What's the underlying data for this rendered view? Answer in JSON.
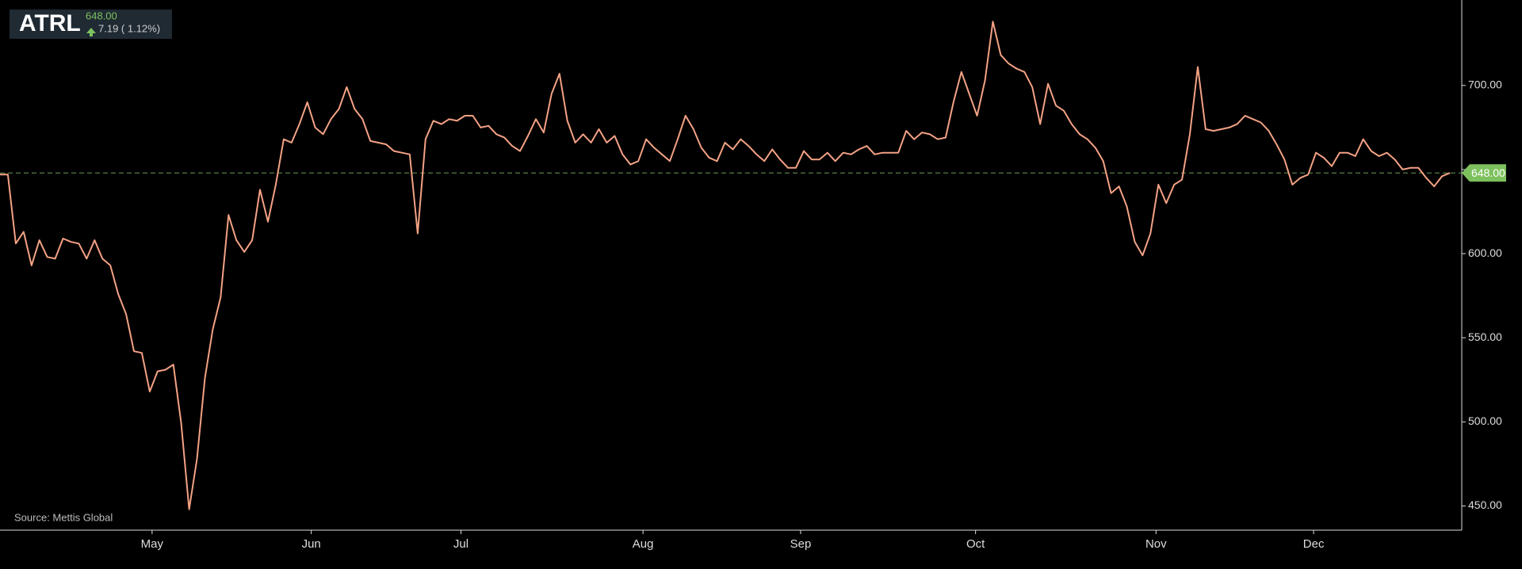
{
  "chart_data": {
    "type": "line",
    "ticker": {
      "symbol": "ATRL",
      "price": "648.00",
      "change": "7.19 ( 1.12%)"
    },
    "source": "Source: Mettis Global",
    "color": "#f4a285",
    "values": [
      647,
      647,
      606,
      613,
      593,
      608,
      598,
      597,
      609,
      607,
      606,
      597,
      608,
      597,
      593,
      576,
      564,
      542,
      541,
      518,
      530,
      531,
      534,
      499,
      448,
      478,
      526,
      555,
      574,
      623,
      608,
      601,
      608,
      638,
      619,
      641,
      668,
      666,
      677,
      690,
      675,
      671,
      680,
      686,
      699,
      686,
      680,
      667,
      666,
      665,
      661,
      660,
      659,
      612,
      668,
      679,
      677,
      680,
      679,
      682,
      682,
      675,
      676,
      671,
      669,
      664,
      661,
      670,
      680,
      672,
      695,
      707,
      679,
      666,
      671,
      666,
      674,
      666,
      670,
      659,
      653,
      655,
      668,
      663,
      659,
      655,
      668,
      682,
      674,
      663,
      657,
      655,
      666,
      662,
      668,
      664,
      659,
      655,
      662,
      656,
      651,
      651,
      661,
      656,
      656,
      660,
      655,
      660,
      659,
      662,
      664,
      659,
      660,
      660,
      660,
      673,
      668,
      672,
      671,
      668,
      669,
      690,
      708,
      695,
      682,
      703,
      738,
      718,
      713,
      710,
      708,
      699,
      677,
      701,
      688,
      685,
      677,
      671,
      668,
      663,
      655,
      636,
      640,
      628,
      607,
      599,
      612,
      641,
      630,
      641,
      644,
      671,
      711,
      674,
      673,
      674,
      675,
      677,
      682,
      680,
      678,
      673,
      665,
      656,
      641,
      645,
      647,
      660,
      657,
      652,
      660,
      660,
      658,
      668,
      661,
      658,
      660,
      656,
      650,
      651,
      651,
      645,
      640,
      646,
      648
    ],
    "xlim": [
      0,
      185.5
    ],
    "xticks": [
      {
        "value": 19.3,
        "label": "May"
      },
      {
        "value": 39.5,
        "label": "Jun"
      },
      {
        "value": 58.5,
        "label": "Jul"
      },
      {
        "value": 81.6,
        "label": "Aug"
      },
      {
        "value": 101.6,
        "label": "Sep"
      },
      {
        "value": 123.8,
        "label": "Oct"
      },
      {
        "value": 146.7,
        "label": "Nov"
      },
      {
        "value": 166.7,
        "label": "Dec"
      }
    ],
    "ylim": [
      435.6,
      750.8
    ],
    "yticks": [
      {
        "value": 450,
        "label": "450.00"
      },
      {
        "value": 500,
        "label": "500.00"
      },
      {
        "value": 550,
        "label": "550.00"
      },
      {
        "value": 600,
        "label": "600.00"
      },
      {
        "value": 650,
        "label": "650.00"
      },
      {
        "value": 700,
        "label": "700.00"
      }
    ],
    "last_price": {
      "value": 648,
      "label": "648.00"
    }
  }
}
